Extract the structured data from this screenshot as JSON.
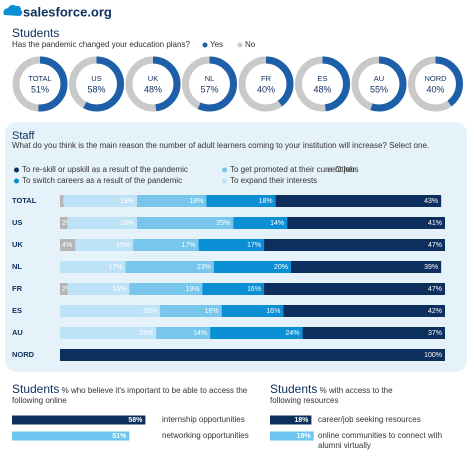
{
  "header": {
    "logo": "salesforce.org"
  },
  "chart_data": [
    {
      "type": "donut",
      "title": "Students",
      "subtitle": "Has the pandemic changed your education plans?",
      "legend": [
        {
          "name": "Yes",
          "color": "#1d5fa8"
        },
        {
          "name": "No",
          "color": "#c9c9c9"
        }
      ],
      "categories": [
        "TOTAL",
        "US",
        "UK",
        "NL",
        "FR",
        "ES",
        "AU",
        "NORD"
      ],
      "values": [
        51,
        58,
        48,
        57,
        40,
        48,
        55,
        40
      ],
      "value_labels": [
        "51%",
        "58%",
        "48%",
        "57%",
        "40%",
        "48%",
        "55%",
        "40%"
      ]
    },
    {
      "type": "stacked-bar",
      "title": "Staff",
      "subtitle": "What do you think is the main reason the number of adult learners coming to your institution will increase? Select one.",
      "categories": [
        "TOTAL",
        "US",
        "UK",
        "NL",
        "FR",
        "ES",
        "AU",
        "NORD"
      ],
      "xlim": [
        0,
        100
      ],
      "series": [
        {
          "name": "Other",
          "color": "#b5b5b5",
          "values": [
            1,
            2,
            4,
            null,
            2,
            null,
            null,
            null
          ],
          "value_labels": [
            "1%",
            "2%",
            "4%",
            null,
            "2%",
            null,
            null,
            null
          ]
        },
        {
          "name": "To expand their interests",
          "color": "#bfe3f6",
          "values": [
            19,
            18,
            15,
            17,
            16,
            26,
            25,
            null
          ],
          "value_labels": [
            "19%",
            "18%",
            "15%",
            "17%",
            "16%",
            "26%",
            "25%",
            null
          ]
        },
        {
          "name": "To get promoted at their current jobs",
          "color": "#78c6ec",
          "values": [
            18,
            25,
            17,
            23,
            19,
            16,
            14,
            null
          ],
          "value_labels": [
            "18%",
            "25%",
            "17%",
            "23%",
            "19%",
            "16%",
            "14%",
            null
          ]
        },
        {
          "name": "To switch careers as a result of the pandemic",
          "color": "#0b8fd4",
          "values": [
            18,
            14,
            17,
            20,
            16,
            16,
            24,
            null
          ],
          "value_labels": [
            "18%",
            "14%",
            "17%",
            "20%",
            "16%",
            "16%",
            "24%",
            null
          ]
        },
        {
          "name": "To re-skill or upskill as a result of the pandemic",
          "color": "#0c2f5e",
          "values": [
            43,
            41,
            47,
            39,
            47,
            42,
            37,
            100
          ],
          "value_labels": [
            "43%",
            "41%",
            "47%",
            "39%",
            "47%",
            "42%",
            "37%",
            "100%"
          ]
        }
      ]
    },
    {
      "type": "bar",
      "title": "Students",
      "subtitle": "% who believe it's important to be able to access the following online",
      "categories": [
        "internship opportunities",
        "networking opportunities"
      ],
      "values": [
        58,
        51
      ],
      "value_labels": [
        "58%",
        "51%"
      ],
      "colors": [
        "#0c2f5e",
        "#6cc5ee"
      ]
    },
    {
      "type": "bar",
      "title": "Students",
      "subtitle": "% with access to the following resources",
      "categories": [
        "career/job seeking resources",
        "online communities to connect with alumni virtually"
      ],
      "values": [
        18,
        19
      ],
      "value_labels": [
        "18%",
        "19%"
      ],
      "colors": [
        "#0c2f5e",
        "#6cc5ee"
      ]
    }
  ]
}
